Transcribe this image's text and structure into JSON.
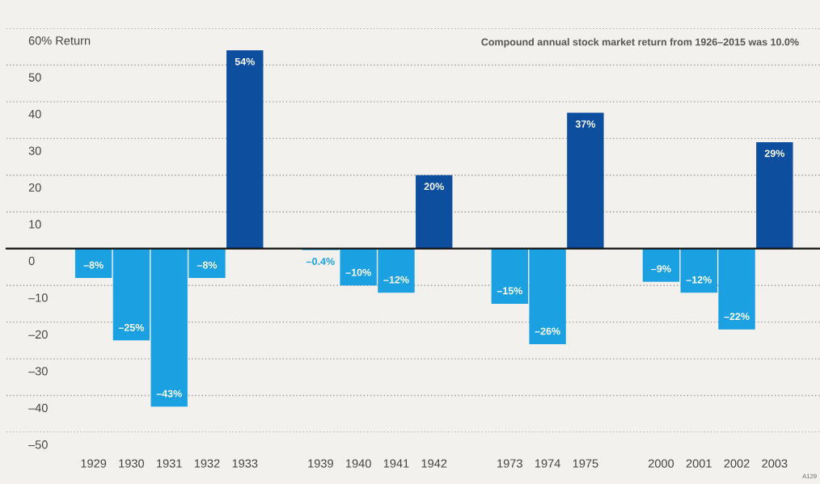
{
  "chart_data": {
    "type": "bar",
    "categories": [
      "1929",
      "1930",
      "1931",
      "1932",
      "1933",
      null,
      "1939",
      "1940",
      "1941",
      "1942",
      null,
      "1973",
      "1974",
      "1975",
      null,
      "2000",
      "2001",
      "2002",
      "2003"
    ],
    "values": [
      -8,
      -25,
      -43,
      -8,
      54,
      null,
      -0.4,
      -10,
      -12,
      20,
      null,
      -15,
      -26,
      37,
      null,
      -9,
      -12,
      -22,
      29
    ],
    "value_labels": [
      "–8%",
      "–25%",
      "–43%",
      "–8%",
      "54%",
      null,
      "–0.4%",
      "–10%",
      "–12%",
      "20%",
      null,
      "–15%",
      "–26%",
      "37%",
      null,
      "–9%",
      "–12%",
      "–22%",
      "29%"
    ],
    "colors": [
      "#1ba0e1",
      "#1ba0e1",
      "#1ba0e1",
      "#1ba0e1",
      "#0d4e9f",
      null,
      "#1ba0e1",
      "#1ba0e1",
      "#1ba0e1",
      "#0d4e9f",
      null,
      "#1ba0e1",
      "#1ba0e1",
      "#0d4e9f",
      null,
      "#1ba0e1",
      "#1ba0e1",
      "#1ba0e1",
      "#0d4e9f"
    ],
    "ylim": [
      -50,
      60
    ],
    "yticks": [
      {
        "value": 60,
        "label": "60% Return"
      },
      50,
      40,
      30,
      20,
      10,
      0,
      {
        "value": -10,
        "label": "–10"
      },
      {
        "value": -20,
        "label": "–20"
      },
      {
        "value": -30,
        "label": "–30"
      },
      {
        "value": -40,
        "label": "–40"
      },
      {
        "value": -50,
        "label": "–50"
      }
    ],
    "grid": "y",
    "annotations": [
      "Compound annual stock market return from 1926–2015 was 10.0%",
      "A129"
    ]
  }
}
